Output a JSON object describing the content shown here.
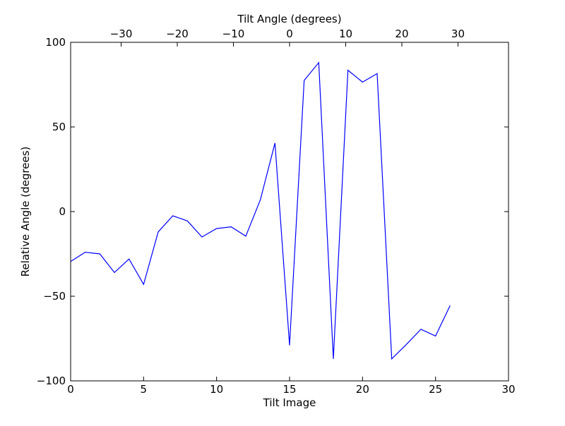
{
  "chart_data": {
    "type": "line",
    "xlabel": "Tilt Image",
    "ylabel": "Relative Angle (degrees)",
    "top_xlabel": "Tilt Angle (degrees)",
    "xlim": [
      0,
      30
    ],
    "ylim": [
      -100,
      100
    ],
    "xticks": [
      0,
      5,
      10,
      15,
      20,
      25,
      30
    ],
    "yticks": [
      -100,
      -50,
      0,
      50,
      100
    ],
    "top_xlim": [
      -39,
      39
    ],
    "top_xticks": [
      -30,
      -20,
      -10,
      0,
      10,
      20,
      30
    ],
    "grid": false,
    "series": [
      {
        "color": "#0000ff",
        "x": [
          0,
          1,
          2,
          3,
          4,
          5,
          6,
          7,
          8,
          9,
          10,
          11,
          12,
          13,
          14,
          15,
          16,
          17,
          18,
          19,
          20,
          21,
          22,
          23,
          24,
          25,
          26
        ],
        "y": [
          -29.5,
          -24,
          -25,
          -36,
          -28,
          -43,
          -12,
          -2.5,
          -5.5,
          -15,
          -10,
          -9,
          -14.5,
          7,
          40.5,
          -79,
          77.5,
          88,
          -87,
          83.5,
          76.5,
          81.5,
          -87,
          -78.5,
          -69.5,
          -73.5,
          -55.5
        ]
      }
    ]
  }
}
